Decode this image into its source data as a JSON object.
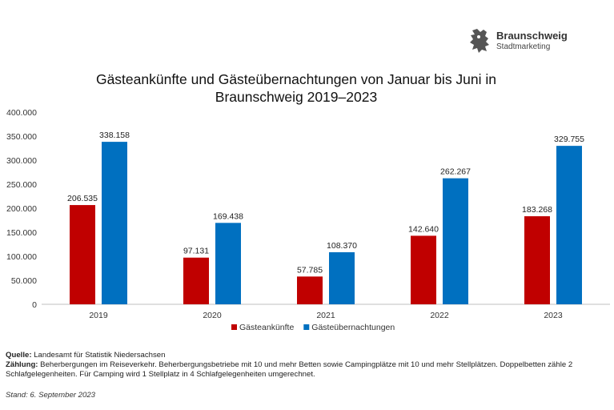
{
  "brand": {
    "name": "Braunschweig",
    "sub": "Stadtmarketing"
  },
  "chart_data": {
    "type": "bar",
    "title_line1": "Gästeankünfte und Gästeübernachtungen von Januar bis Juni in",
    "title_line2": "Braunschweig 2019–2023",
    "categories": [
      "2019",
      "2020",
      "2021",
      "2022",
      "2023"
    ],
    "series": [
      {
        "name": "Gästeankünfte",
        "color": "#C00000",
        "values": [
          206535,
          97131,
          57785,
          142640,
          183268
        ],
        "labels": [
          "206.535",
          "97.131",
          "57.785",
          "142.640",
          "183.268"
        ]
      },
      {
        "name": "Gästeübernachtungen",
        "color": "#0070C0",
        "values": [
          338158,
          169438,
          108370,
          262267,
          329755
        ],
        "labels": [
          "338.158",
          "169.438",
          "108.370",
          "262.267",
          "329.755"
        ]
      }
    ],
    "ylim": [
      0,
      400000
    ],
    "yticks": [
      0,
      50000,
      100000,
      150000,
      200000,
      250000,
      300000,
      350000,
      400000
    ],
    "ytick_labels": [
      "0",
      "50.000",
      "100.000",
      "150.000",
      "200.000",
      "250.000",
      "300.000",
      "350.000",
      "400.000"
    ],
    "legend": "bottom"
  },
  "footer": {
    "source_label": "Quelle:",
    "source_text": " Landesamt für Statistik Niedersachsen",
    "count_label": "Zählung:",
    "count_text": " Beherbergungen im Reiseverkehr. Beherbergungsbetriebe mit 10 und mehr Betten sowie Campingplätze mit 10 und mehr Stellplätzen. Doppelbetten zähle 2 Schlafgelegenheiten. Für Camping wird 1 Stellplatz in 4 Schlafgelegenheiten umgerechnet.",
    "stand": "Stand: 6. September 2023"
  }
}
